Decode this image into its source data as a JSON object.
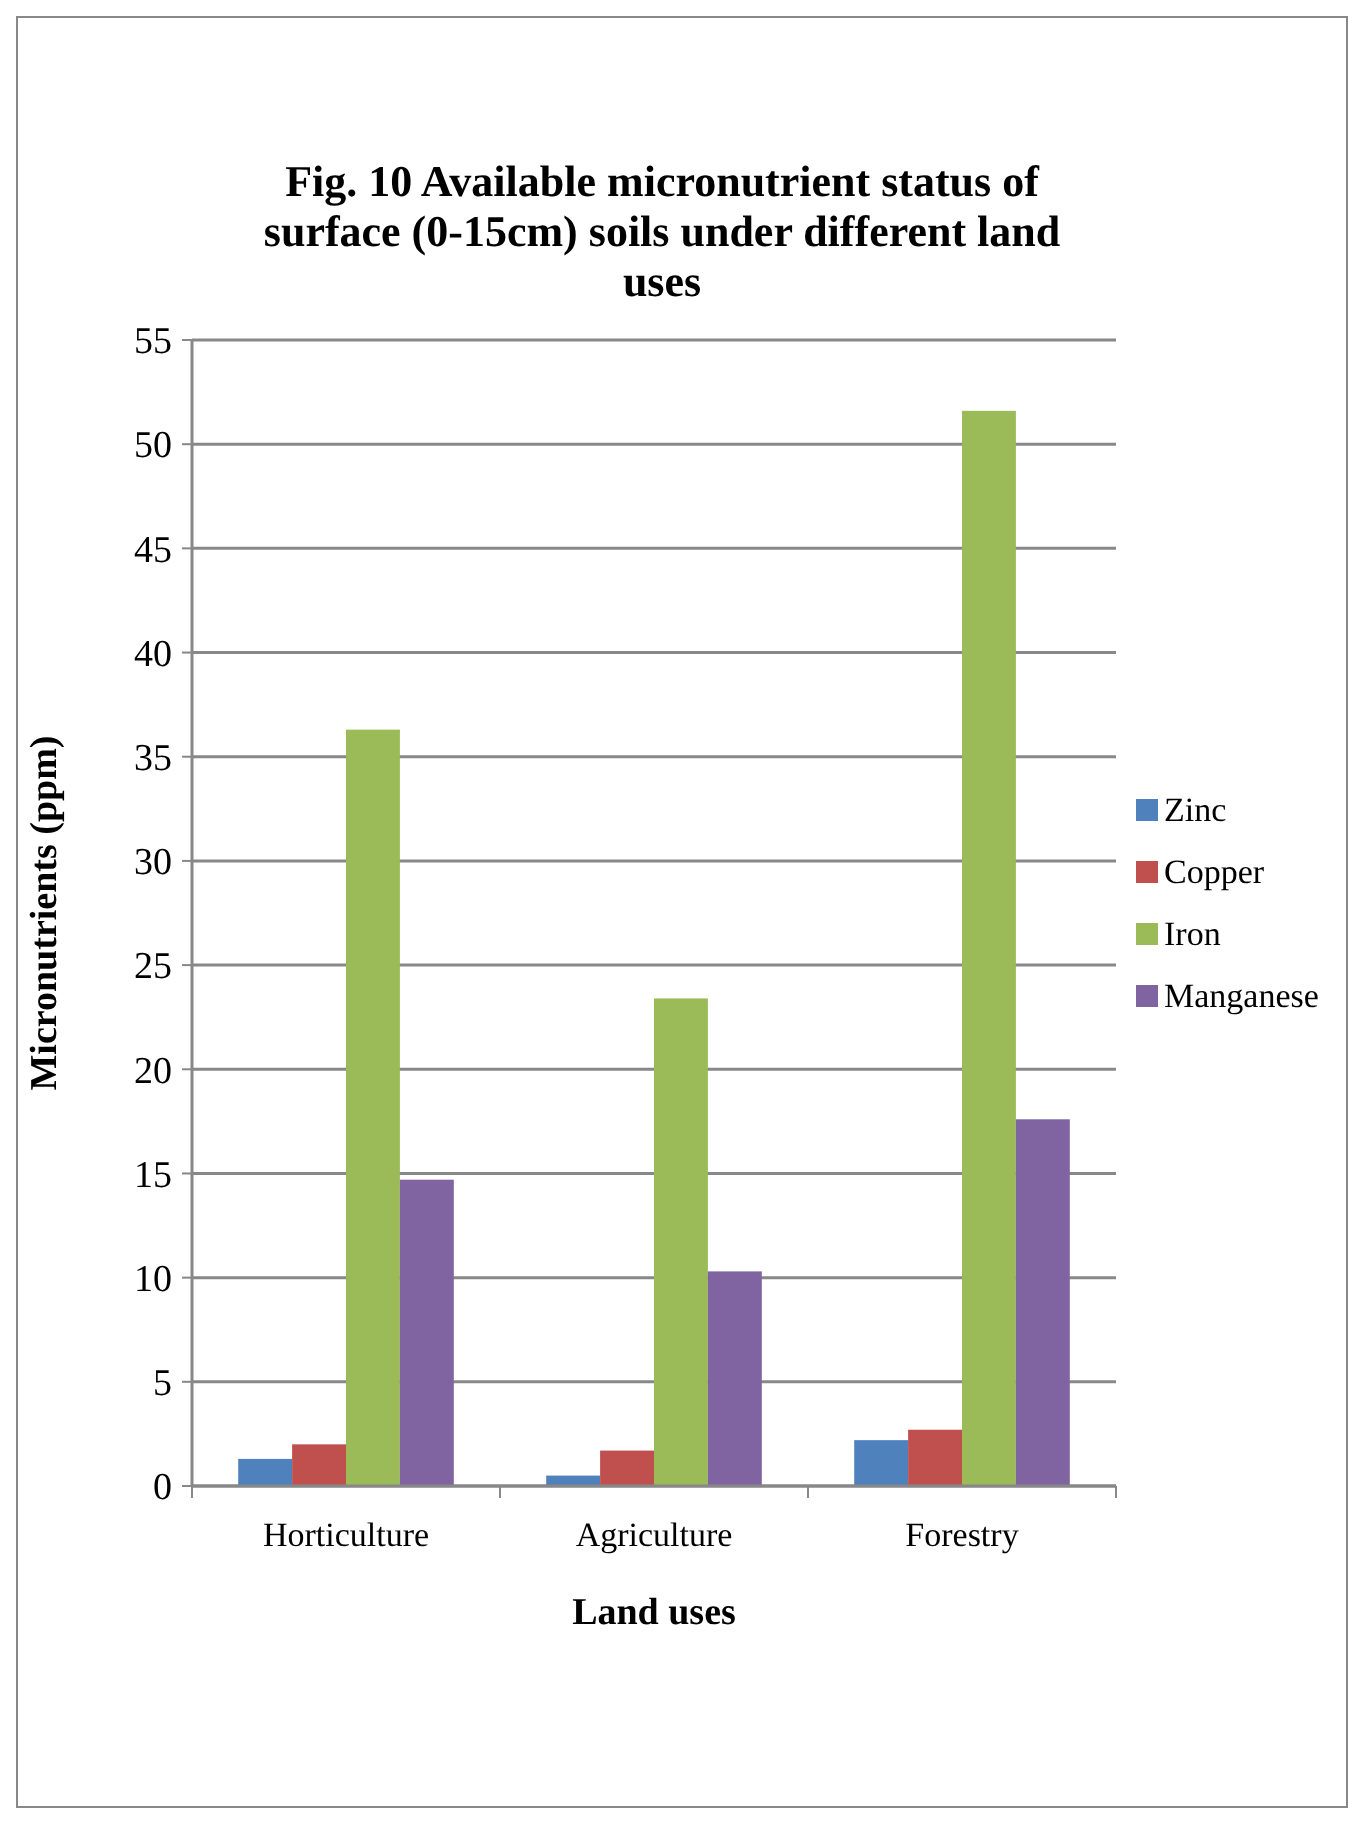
{
  "chart_data": {
    "type": "bar",
    "title": "Fig. 10 Available micronutrient status of surface (0-15cm) soils under different land uses",
    "xlabel": "Land uses",
    "ylabel": "Micronutrients (ppm)",
    "categories": [
      "Horticulture",
      "Agriculture",
      "Forestry"
    ],
    "series": [
      {
        "name": "Zinc",
        "color": "#4f81bd",
        "values": [
          1.3,
          0.5,
          2.2
        ]
      },
      {
        "name": "Copper",
        "color": "#c0504d",
        "values": [
          2.0,
          1.7,
          2.7
        ]
      },
      {
        "name": "Iron",
        "color": "#9bbb59",
        "values": [
          36.3,
          23.4,
          51.6
        ]
      },
      {
        "name": "Manganese",
        "color": "#8064a2",
        "values": [
          14.7,
          10.3,
          17.6
        ]
      }
    ],
    "ylim": [
      0,
      55
    ],
    "yticks": [
      0,
      5,
      10,
      15,
      20,
      25,
      30,
      35,
      40,
      45,
      50,
      55
    ],
    "grid": "y",
    "legend": "right"
  }
}
